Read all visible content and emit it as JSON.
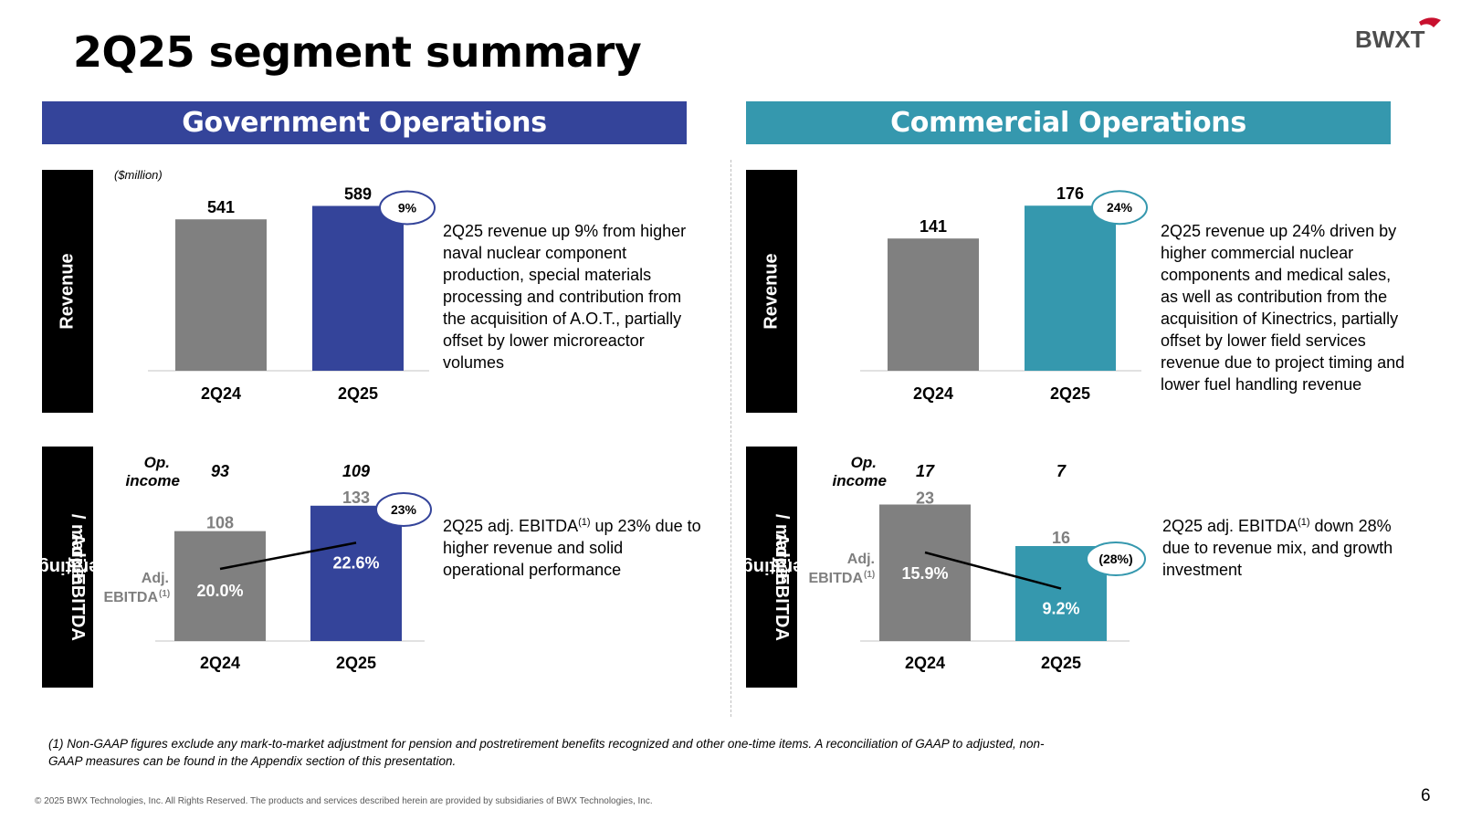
{
  "title": "2Q25 segment summary",
  "logo_text": "BWXT",
  "colors": {
    "government": "#34449a",
    "commercial": "#3598ae",
    "gray": "#808080",
    "muted": "#7f7f7f"
  },
  "units_note": "($million)",
  "row_labels": {
    "revenue": "Revenue",
    "op_line1": "Operating income &",
    "op_line2_main": "Adj. EBITDA",
    "op_line2_sup": "(1)",
    "op_line2_rest": " / margin"
  },
  "labels": {
    "op_income_1": "Op.",
    "op_income_2": "income",
    "adj_1": "Adj.",
    "adj_2": "EBITDA",
    "adj_sup": "(1)"
  },
  "government": {
    "header": "Government Operations",
    "revenue_desc": "2Q25 revenue up 9% from higher naval nuclear component production, special materials processing and contribution from the acquisition of A.O.T., partially offset by lower microreactor volumes",
    "ebitda_desc_pre": "2Q25 adj. EBITDA",
    "ebitda_desc_sup": "(1)",
    "ebitda_desc_post": " up 23% due to higher revenue and solid operational performance"
  },
  "commercial": {
    "header": "Commercial Operations",
    "revenue_desc": "2Q25 revenue up 24% driven by higher commercial nuclear components and medical sales, as well as contribution from the acquisition of Kinectrics, partially offset by lower field services revenue due to project timing and lower fuel handling revenue",
    "ebitda_desc_pre": "2Q25 adj. EBITDA",
    "ebitda_desc_sup": "(1)",
    "ebitda_desc_post": " down 28% due to revenue mix, and growth investment"
  },
  "footnote": "(1) Non-GAAP figures exclude any mark-to-market adjustment for pension and postretirement benefits recognized and other one-time items.  A reconciliation of GAAP to adjusted, non-GAAP measures can be found in the Appendix section of this presentation.",
  "copyright": "© 2025 BWX Technologies, Inc. All Rights Reserved.   The products and services described herein are provided by subsidiaries of BWX Technologies, Inc.",
  "page_number": "6",
  "chart_data": [
    {
      "id": "gov-revenue",
      "type": "bar",
      "title": "Government Operations Revenue",
      "ylabel": "$million",
      "categories": [
        "2Q24",
        "2Q25"
      ],
      "values": [
        541,
        589
      ],
      "value_labels": [
        "541",
        "589"
      ],
      "change_label": "9%",
      "ylim": [
        0,
        620
      ]
    },
    {
      "id": "com-revenue",
      "type": "bar",
      "title": "Commercial Operations Revenue",
      "ylabel": "$million",
      "categories": [
        "2Q24",
        "2Q25"
      ],
      "values": [
        141,
        176
      ],
      "value_labels": [
        "141",
        "176"
      ],
      "change_label": "24%",
      "ylim": [
        0,
        185
      ]
    },
    {
      "id": "gov-ebitda",
      "type": "bar",
      "title": "Government Operations Operating income & Adj. EBITDA / margin",
      "categories": [
        "2Q24",
        "2Q25"
      ],
      "series": [
        {
          "name": "Adj. EBITDA",
          "values": [
            108,
            133
          ],
          "labels": [
            "108",
            "133"
          ]
        },
        {
          "name": "Op. income",
          "values": [
            93,
            109
          ],
          "labels": [
            "93",
            "109"
          ]
        },
        {
          "name": "Margin (%)",
          "values": [
            20.0,
            22.6
          ],
          "labels": [
            "20.0%",
            "22.6%"
          ]
        }
      ],
      "change_label": "23%",
      "ylim": [
        0,
        140
      ],
      "margin_range": [
        0,
        30
      ]
    },
    {
      "id": "com-ebitda",
      "type": "bar",
      "title": "Commercial Operations Operating income & Adj. EBITDA / margin",
      "categories": [
        "2Q24",
        "2Q25"
      ],
      "series": [
        {
          "name": "Adj. EBITDA",
          "values": [
            23,
            16
          ],
          "labels": [
            "23",
            "16"
          ]
        },
        {
          "name": "Op. income",
          "values": [
            17,
            7
          ],
          "labels": [
            "17",
            "7"
          ]
        },
        {
          "name": "Margin (%)",
          "values": [
            15.9,
            9.2
          ],
          "labels": [
            "15.9%",
            "9.2%"
          ]
        }
      ],
      "change_label": "(28%)",
      "ylim": [
        0,
        24
      ],
      "margin_range": [
        0,
        30
      ]
    }
  ]
}
